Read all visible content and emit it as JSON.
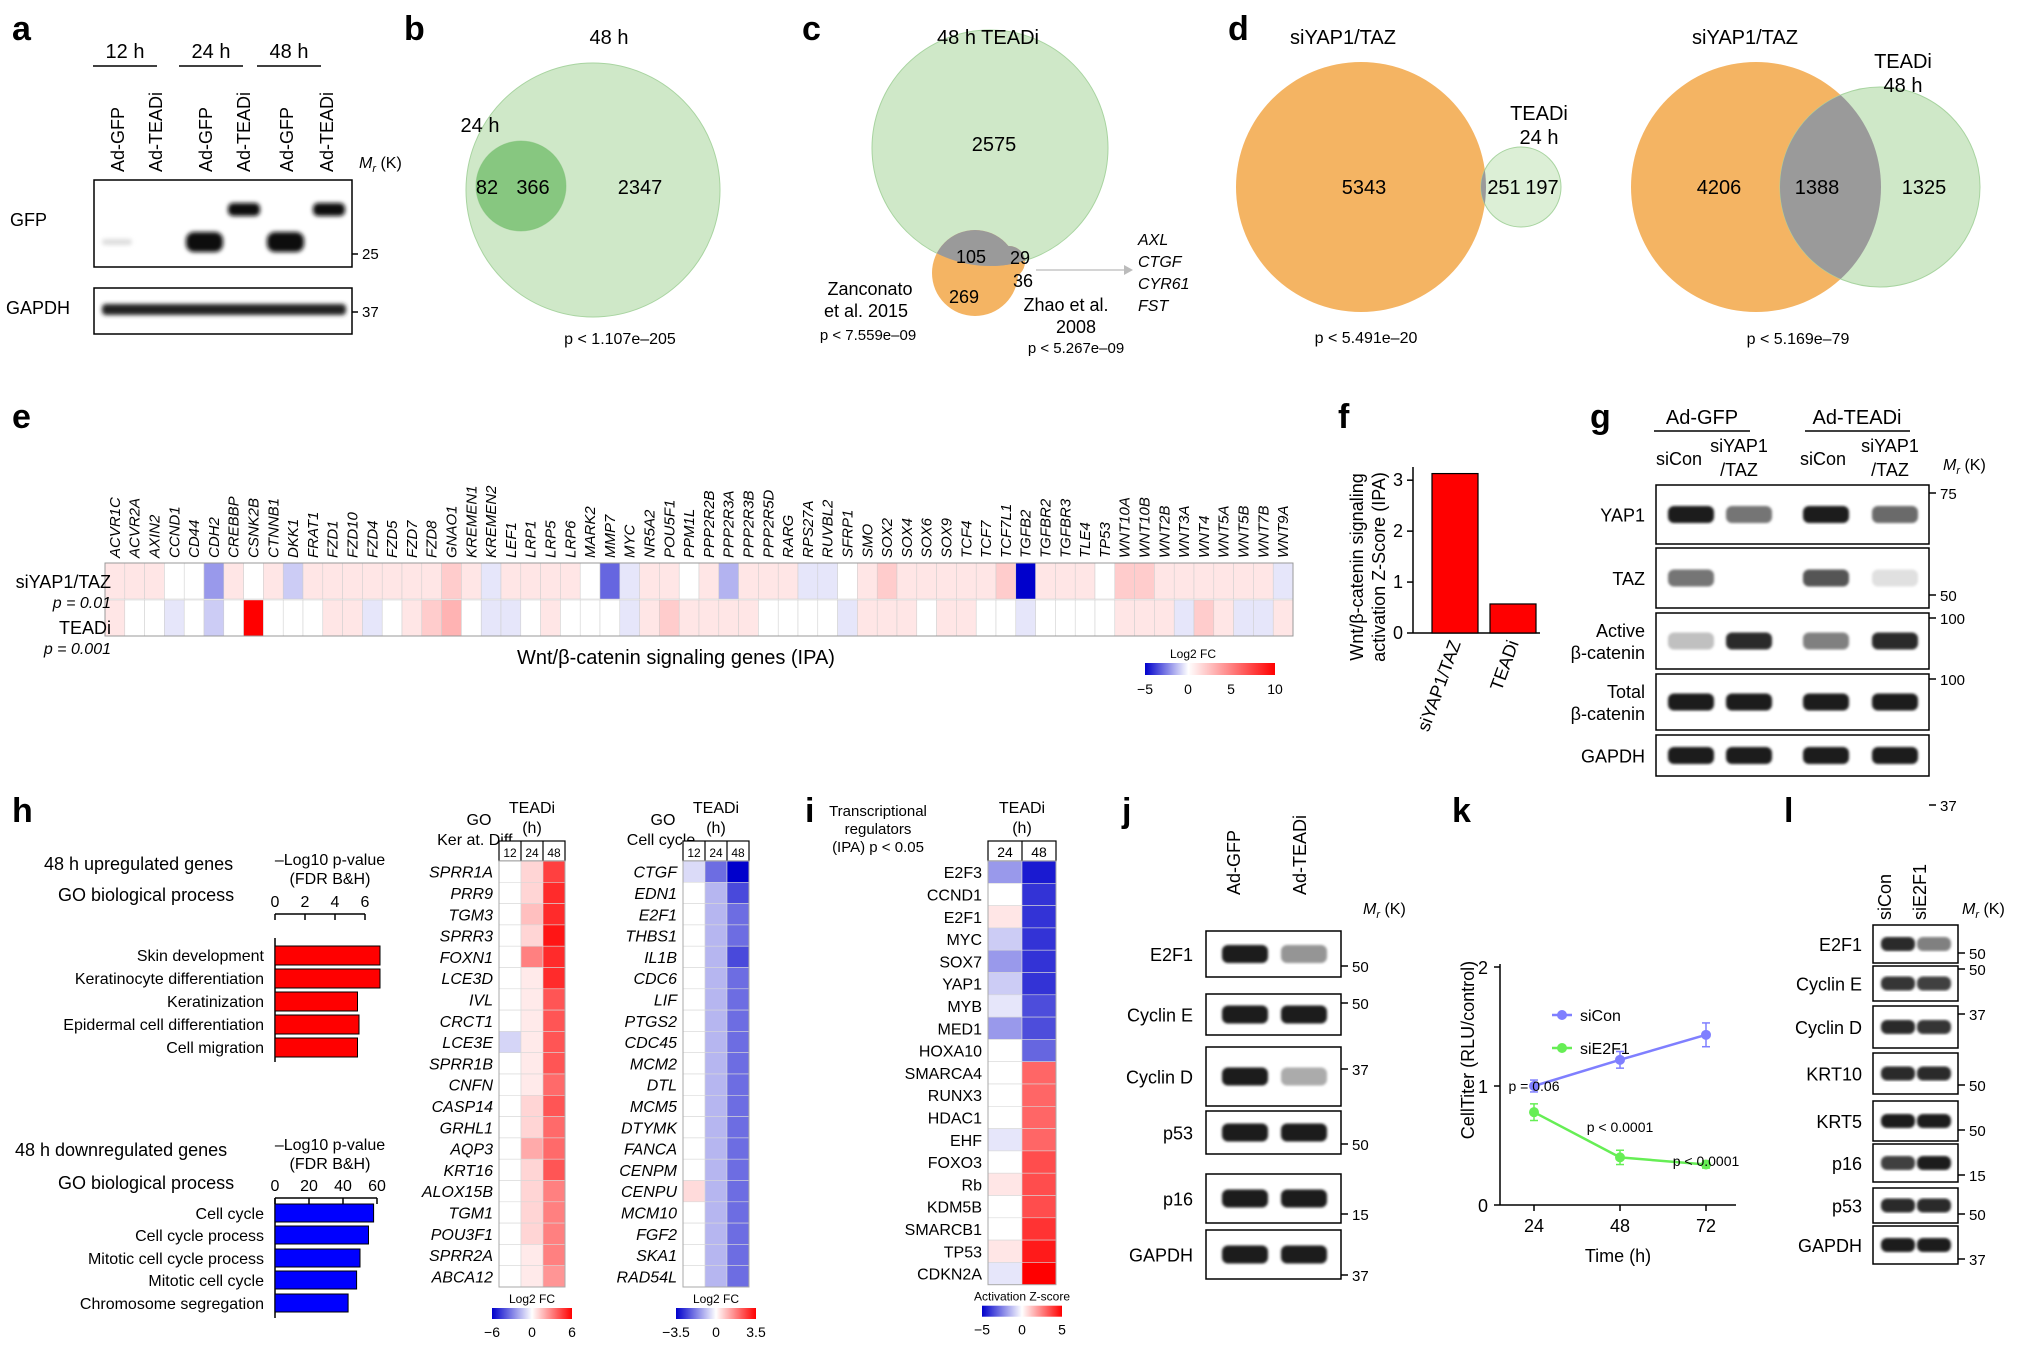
{
  "colors": {
    "venn_green": "#cfe8c8",
    "venn_green_dark": "#7cc276",
    "venn_orange": "#f4b463",
    "venn_overlap": "#9a9a9a",
    "bar_red": "#ff0000",
    "bar_blue": "#0000ff",
    "line_siCon": "#7f7fff",
    "line_siE2F1": "#66ee55"
  },
  "panels": {
    "a": "a",
    "b": "b",
    "c": "c",
    "d": "d",
    "e": "e",
    "f": "f",
    "g": "g",
    "h": "h",
    "i": "i",
    "j": "j",
    "k": "k",
    "l": "l"
  },
  "panel_a": {
    "times": [
      "12 h",
      "24 h",
      "48 h"
    ],
    "lanes": [
      "Ad-GFP",
      "Ad-TEADi",
      "Ad-GFP",
      "Ad-TEADi",
      "Ad-GFP",
      "Ad-TEADi"
    ],
    "rows": [
      "GFP",
      "GAPDH"
    ],
    "mr_label": "M",
    "mr_sub": "r",
    "mr_unit": "(K)",
    "markers": [
      "25",
      "37"
    ]
  },
  "panel_b": {
    "label_48": "48 h",
    "label_24": "24 h",
    "n_left": "82",
    "n_overlap": "366",
    "n_right": "2347",
    "p": "p < 1.107e–205"
  },
  "panel_c": {
    "label_top": "48 h TEADi",
    "n_top": "2575",
    "n_105": "105",
    "n_29": "29",
    "n_36": "36",
    "n_269": "269",
    "label_z1": "Zanconato",
    "label_z2": "et al. 2015",
    "label_zh1": "Zhao et al.",
    "label_zh2": "2008",
    "p_left": "p < 7.559e–09",
    "p_right": "p < 5.267e–09",
    "genes": [
      "AXL",
      "CTGF",
      "CYR61",
      "FST"
    ]
  },
  "panel_d": {
    "left": {
      "label_big": "siYAP1/TAZ",
      "label_small1": "TEADi",
      "label_small2": "24 h",
      "n_left": "5343",
      "n_overlap": "251",
      "n_right": "197",
      "p": "p < 5.491e–20"
    },
    "right": {
      "label_big": "siYAP1/TAZ",
      "label_small1": "TEADi",
      "label_small2": "48 h",
      "n_left": "4206",
      "n_overlap": "1388",
      "n_right": "1325",
      "p": "p < 5.169e–79"
    }
  },
  "panel_e": {
    "genes": [
      "ACVR1C",
      "ACVR2A",
      "AXIN2",
      "CCND1",
      "CD44",
      "CDH2",
      "CREBBP",
      "CSNK2B",
      "CTNNB1",
      "DKK1",
      "FRAT1",
      "FZD1",
      "FZD10",
      "FZD4",
      "FZD5",
      "FZD7",
      "FZD8",
      "GNAO1",
      "KREMEN1",
      "KREMEN2",
      "LEF1",
      "LRP1",
      "LRP5",
      "LRP6",
      "MARK2",
      "MMP7",
      "MYC",
      "NR5A2",
      "POU5F1",
      "PPM1L",
      "PPP2R2B",
      "PPP2R3A",
      "PPP2R3B",
      "PPP2R5D",
      "RARG",
      "RPS27A",
      "RUVBL2",
      "SFRP1",
      "SMO",
      "SOX2",
      "SOX4",
      "SOX6",
      "SOX9",
      "TCF4",
      "TCF7",
      "TCF7L1",
      "TGFB2",
      "TGFBR2",
      "TGFBR3",
      "TLE4",
      "TP53",
      "WNT10A",
      "WNT10B",
      "WNT2B",
      "WNT3A",
      "WNT4",
      "WNT5A",
      "WNT5B",
      "WNT7B",
      "WNT9A"
    ],
    "row1_label": "siYAP1/TAZ",
    "row1_p": "p = 0.01",
    "row2_label": "TEADi",
    "row2_p": "p = 0.001",
    "row1": [
      1,
      1,
      1,
      0,
      0,
      -4,
      1,
      0,
      1,
      -2,
      1,
      1,
      1,
      1,
      1,
      1,
      1,
      2,
      1,
      -1,
      1,
      1,
      1,
      1,
      0,
      -6,
      -1,
      1,
      1,
      0,
      1,
      -3,
      1,
      1,
      1,
      -1,
      -1,
      0,
      1,
      2,
      1,
      1,
      1,
      1,
      1,
      2,
      -10,
      1,
      1,
      1,
      0,
      2,
      2,
      1,
      1,
      1,
      1,
      1,
      1,
      -1
    ],
    "row2": [
      1,
      0,
      0,
      -1,
      0,
      -2,
      0,
      10,
      0,
      0,
      0,
      1,
      1,
      -1,
      0,
      1,
      2,
      3,
      0,
      -1,
      -1,
      0,
      1,
      0,
      0,
      0,
      -1,
      1,
      2,
      1,
      1,
      1,
      1,
      0,
      0,
      0,
      0,
      -1,
      1,
      1,
      1,
      0,
      1,
      1,
      0,
      0,
      -1,
      0,
      0,
      0,
      0,
      1,
      1,
      1,
      -1,
      2,
      1,
      -1,
      -1,
      1
    ],
    "xlabel": "Wnt/β-catenin signaling genes (IPA)",
    "scale_title": "Log2 FC",
    "scale_ticks": [
      "−5",
      "0",
      "5",
      "10"
    ]
  },
  "panel_f": {
    "ylabel_line1": "Wnt/β-catenin signaling",
    "ylabel_line2": "activation Z-Score (IPA)",
    "yticks": [
      "0",
      "1",
      "2",
      "3"
    ]
  },
  "chart_data": [
    {
      "type": "bar",
      "categories": [
        "siYAP1/TAZ",
        "TEADi"
      ],
      "values": [
        3.13,
        0.57
      ],
      "ylabel": "Wnt/β-catenin signaling activation Z-Score (IPA)",
      "ylim": [
        0,
        3.2
      ]
    },
    {
      "type": "bar",
      "title": "48 h upregulated genes GO biological process",
      "categories": [
        "Skin development",
        "Keratinocyte differentiation",
        "Keratinization",
        "Epidermal cell differentiation",
        "Cell migration"
      ],
      "values": [
        7.0,
        7.0,
        5.5,
        5.6,
        5.5
      ],
      "xlabel": "–Log10 p-value (FDR B&H)",
      "xlim": [
        0,
        7
      ]
    },
    {
      "type": "bar",
      "title": "48 h downregulated genes GO biological process",
      "categories": [
        "Cell cycle",
        "Cell cycle process",
        "Mitotic cell cycle process",
        "Mitotic cell cycle",
        "Chromosome segregation"
      ],
      "values": [
        58,
        55,
        50,
        48,
        43
      ],
      "xlabel": "–Log10 p-value (FDR B&H)",
      "xlim": [
        0,
        60
      ]
    },
    {
      "type": "line",
      "x": [
        24,
        48,
        72
      ],
      "series": [
        {
          "name": "siCon",
          "values": [
            1.0,
            1.22,
            1.43
          ]
        },
        {
          "name": "siE2F1",
          "values": [
            0.78,
            0.4,
            0.34
          ]
        }
      ],
      "xlabel": "Time (h)",
      "ylabel": "CellTiter (RLU/control)",
      "ylim": [
        0,
        2
      ],
      "annotations": [
        "p = 0.06",
        "p < 0.0001",
        "p < 0.0001"
      ]
    }
  ],
  "panel_g": {
    "groups": [
      "Ad-GFP",
      "Ad-TEADi"
    ],
    "lanes": [
      "siCon",
      "siYAP1/TAZ",
      "siCon",
      "siYAP1/TAZ"
    ],
    "rows": [
      "YAP1",
      "TAZ",
      "Active β-catenin",
      "Total β-catenin",
      "GAPDH"
    ],
    "markers": [
      "75",
      "50",
      "100",
      "100",
      "37"
    ]
  },
  "panel_h": {
    "up_title": "48 h upregulated genes",
    "up_sub": "GO biological process",
    "down_title": "48 h downregulated genes",
    "down_sub": "GO biological process",
    "axis_line1": "–Log10 p-value",
    "axis_line2": "(FDR B&H)",
    "up_ticks": [
      "0",
      "2",
      "4",
      "6"
    ],
    "down_ticks": [
      "0",
      "20",
      "40",
      "60"
    ],
    "hm1_go": "GO",
    "hm1_term": "Ker at. Diff.",
    "hm2_go": "GO",
    "hm2_term": "Cell cycle",
    "hm_group": "TEADi",
    "hm_unit": "(h)",
    "hm_times": [
      "12",
      "24",
      "48"
    ],
    "hm1_genes": [
      "SPRR1A",
      "PRR9",
      "TGM3",
      "SPRR3",
      "FOXN1",
      "LCE3D",
      "IVL",
      "CRCT1",
      "LCE3E",
      "SPRR1B",
      "CNFN",
      "CASP14",
      "GRHL1",
      "AQP3",
      "KRT16",
      "ALOX15B",
      "TGM1",
      "POU3F1",
      "SPRR2A",
      "ABCA12"
    ],
    "hm1_vals": [
      [
        0,
        1,
        4.5
      ],
      [
        0,
        1,
        5
      ],
      [
        0,
        1.5,
        5
      ],
      [
        0,
        1,
        5.5
      ],
      [
        0,
        3,
        5
      ],
      [
        0,
        0.5,
        5
      ],
      [
        0,
        0.5,
        4
      ],
      [
        0,
        0.5,
        4
      ],
      [
        -1,
        0.5,
        4
      ],
      [
        0,
        0.5,
        4
      ],
      [
        0,
        0.5,
        3.5
      ],
      [
        0,
        1,
        4
      ],
      [
        0,
        1,
        3.5
      ],
      [
        0,
        2,
        3.5
      ],
      [
        0,
        1,
        4
      ],
      [
        0,
        1,
        3
      ],
      [
        0,
        1,
        3
      ],
      [
        0,
        1,
        3
      ],
      [
        0,
        0.5,
        3
      ],
      [
        0,
        0.5,
        2.5
      ]
    ],
    "hm2_genes": [
      "CTGF",
      "EDN1",
      "E2F1",
      "THBS1",
      "IL1B",
      "CDC6",
      "LIF",
      "PTGS2",
      "CDC45",
      "MCM2",
      "DTL",
      "MCM5",
      "DTYMK",
      "FANCA",
      "CENPM",
      "CENPU",
      "MCM10",
      "FGF2",
      "SKA1",
      "RAD54L"
    ],
    "hm2_vals": [
      [
        -0.5,
        -2,
        -3.5
      ],
      [
        0,
        -1,
        -2.5
      ],
      [
        0,
        -1,
        -2
      ],
      [
        0,
        -1,
        -2
      ],
      [
        0,
        -1,
        -2.5
      ],
      [
        0,
        -1,
        -2
      ],
      [
        0,
        -1,
        -2
      ],
      [
        0,
        -1,
        -2
      ],
      [
        0,
        -1,
        -2
      ],
      [
        0,
        -1,
        -2
      ],
      [
        0,
        -1,
        -2
      ],
      [
        0,
        -1,
        -2
      ],
      [
        0,
        -1,
        -2
      ],
      [
        0,
        -1,
        -2
      ],
      [
        0,
        -1,
        -2
      ],
      [
        0.5,
        -1,
        -2
      ],
      [
        0,
        -1,
        -2
      ],
      [
        0,
        -1,
        -2
      ],
      [
        0,
        -1,
        -2
      ],
      [
        0,
        -1,
        -2
      ]
    ],
    "scale1_title": "Log2 FC",
    "scale1_ticks": [
      "−6",
      "0",
      "6"
    ],
    "scale2_title": "Log2 FC",
    "scale2_ticks": [
      "−3.5",
      "0",
      "3.5"
    ]
  },
  "panel_i": {
    "header1": "Transcriptional",
    "header2": "regulators",
    "header3": "(IPA) p < 0.05",
    "group": "TEADi",
    "unit": "(h)",
    "times": [
      "24",
      "48"
    ],
    "genes": [
      "E2F3",
      "CCND1",
      "E2F1",
      "MYC",
      "SOX7",
      "YAP1",
      "MYB",
      "MED1",
      "HOXA10",
      "SMARCA4",
      "RUNX3",
      "HDAC1",
      "EHF",
      "FOXO3",
      "Rb",
      "KDM5B",
      "SMARCB1",
      "TP53",
      "CDKN2A"
    ],
    "vals": [
      [
        -2,
        -4.5
      ],
      [
        0,
        -4
      ],
      [
        0.5,
        -4
      ],
      [
        -1,
        -4
      ],
      [
        -2,
        -4
      ],
      [
        -1,
        -4
      ],
      [
        -0.5,
        -3.5
      ],
      [
        -2,
        -3.5
      ],
      [
        0,
        -3
      ],
      [
        0,
        3
      ],
      [
        0,
        3
      ],
      [
        0,
        3
      ],
      [
        -0.5,
        3
      ],
      [
        0,
        3.5
      ],
      [
        0.5,
        3.5
      ],
      [
        0,
        3.5
      ],
      [
        0,
        4
      ],
      [
        0.5,
        4.5
      ],
      [
        -0.5,
        5
      ]
    ],
    "scale_title": "Activation Z-score",
    "scale_ticks": [
      "−5",
      "0",
      "5"
    ]
  },
  "panel_j": {
    "lanes": [
      "Ad-GFP",
      "Ad-TEADi"
    ],
    "rows": [
      "E2F1",
      "Cyclin E",
      "Cyclin D",
      "p53",
      "p16",
      "GAPDH"
    ],
    "markers": [
      "50",
      "50",
      "37",
      "50",
      "15",
      "37"
    ]
  },
  "panel_k": {
    "xlabel": "Time (h)",
    "ylabel": "CellTiter (RLU/control)",
    "xticks": [
      "24",
      "48",
      "72"
    ],
    "yticks": [
      "0",
      "1",
      "2"
    ],
    "legend": [
      "siCon",
      "siE2F1"
    ],
    "annot": [
      "p = 0.06",
      "p < 0.0001",
      "p < 0.0001"
    ]
  },
  "panel_l": {
    "lanes": [
      "siCon",
      "siE2F1"
    ],
    "rows": [
      "E2F1",
      "Cyclin E",
      "Cyclin D",
      "KRT10",
      "KRT5",
      "p16",
      "p53",
      "GAPDH"
    ],
    "markers": [
      "50",
      "50",
      "37",
      "50",
      "50",
      "15",
      "50",
      "37"
    ]
  }
}
